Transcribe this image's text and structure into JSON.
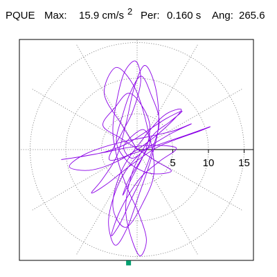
{
  "header": {
    "station": "PQUE",
    "max_label": "Max:",
    "max_value": "15.9 cm/s",
    "max_exponent": "2",
    "per_label": "Per:",
    "per_value": "0.160 s",
    "ang_label": "Ang:",
    "ang_value": "265.6"
  },
  "chart_data": {
    "type": "line",
    "subtype": "polar-particle-motion",
    "title": "",
    "xlabel": "",
    "ylabel": "",
    "rlim": [
      0,
      17
    ],
    "ring_values": [
      5,
      10,
      15
    ],
    "tick_labels": [
      "5",
      "10",
      "15"
    ],
    "radial_spokes_deg": [
      0,
      30,
      60,
      90,
      120,
      150,
      180,
      210,
      240,
      270,
      300,
      330
    ],
    "grid": true,
    "trace_color": "#8a00e6",
    "marker_color": "#00a070",
    "peak": {
      "amplitude": 15.9,
      "period_s": 0.16,
      "angle_deg": 265.6
    },
    "marker_point": {
      "x": -1.2,
      "y": -15.9
    },
    "series": [
      {
        "points": [
          [
            0.0,
            0.0
          ],
          [
            -2.1,
            3.4
          ],
          [
            -4.6,
            7.8
          ],
          [
            -3.0,
            11.5
          ],
          [
            -0.5,
            9.0
          ],
          [
            1.2,
            4.1
          ],
          [
            2.4,
            -2.8
          ],
          [
            0.8,
            -7.5
          ],
          [
            -1.6,
            -10.9
          ],
          [
            -3.4,
            -8.0
          ],
          [
            -2.2,
            -3.0
          ],
          [
            0.9,
            1.6
          ],
          [
            3.8,
            4.8
          ],
          [
            6.2,
            5.6
          ],
          [
            4.1,
            3.2
          ],
          [
            0.6,
            0.4
          ],
          [
            -3.1,
            -1.8
          ],
          [
            -6.7,
            -2.9
          ],
          [
            -9.5,
            -2.4
          ],
          [
            -7.2,
            -0.6
          ],
          [
            -2.8,
            0.9
          ],
          [
            1.5,
            1.8
          ],
          [
            5.0,
            2.6
          ],
          [
            7.6,
            3.6
          ],
          [
            4.3,
            2.0
          ],
          [
            0.2,
            -0.8
          ],
          [
            -2.5,
            -4.6
          ],
          [
            -4.0,
            -9.8
          ],
          [
            -3.1,
            -13.4
          ],
          [
            -1.4,
            -11.0
          ],
          [
            0.3,
            -6.2
          ],
          [
            1.9,
            -1.5
          ],
          [
            3.0,
            3.4
          ],
          [
            2.6,
            8.6
          ],
          [
            1.1,
            11.8
          ],
          [
            -0.4,
            8.7
          ],
          [
            -1.5,
            3.9
          ],
          [
            -2.8,
            -0.8
          ],
          [
            -4.9,
            -4.2
          ],
          [
            -6.4,
            -6.1
          ],
          [
            -4.2,
            -4.8
          ],
          [
            -0.9,
            -2.2
          ],
          [
            2.6,
            0.2
          ],
          [
            5.4,
            1.4
          ],
          [
            8.8,
            2.6
          ],
          [
            10.2,
            3.2
          ],
          [
            7.1,
            2.1
          ],
          [
            3.3,
            0.8
          ],
          [
            -0.4,
            -0.5
          ],
          [
            -3.9,
            -1.4
          ],
          [
            -2.2,
            2.2
          ],
          [
            -0.6,
            5.4
          ],
          [
            0.5,
            9.6
          ],
          [
            -0.2,
            12.4
          ],
          [
            -1.8,
            10.8
          ],
          [
            -2.9,
            6.6
          ],
          [
            -3.4,
            2.4
          ],
          [
            -2.6,
            -1.9
          ],
          [
            -1.3,
            -5.6
          ],
          [
            0.2,
            -8.9
          ],
          [
            1.3,
            -12.6
          ],
          [
            0.4,
            -14.9
          ],
          [
            -0.9,
            -12.1
          ],
          [
            -1.6,
            -8.4
          ],
          [
            -1.0,
            -4.3
          ],
          [
            0.4,
            -0.7
          ],
          [
            2.4,
            2.2
          ],
          [
            4.6,
            3.9
          ],
          [
            6.3,
            5.4
          ],
          [
            4.0,
            4.3
          ],
          [
            1.4,
            2.6
          ],
          [
            -1.5,
            0.8
          ],
          [
            -4.4,
            -0.3
          ],
          [
            -7.3,
            -0.9
          ],
          [
            -10.6,
            -1.4
          ],
          [
            -8.0,
            -1.0
          ],
          [
            -4.6,
            -0.4
          ],
          [
            -1.2,
            0.3
          ],
          [
            2.1,
            0.6
          ],
          [
            5.5,
            0.2
          ],
          [
            3.2,
            -1.6
          ],
          [
            0.6,
            -3.8
          ],
          [
            -1.4,
            -6.7
          ],
          [
            -2.8,
            -9.5
          ],
          [
            -3.6,
            -12.1
          ],
          [
            -2.3,
            -10.2
          ],
          [
            -0.8,
            -6.9
          ],
          [
            0.9,
            -3.4
          ],
          [
            2.2,
            0.2
          ],
          [
            3.1,
            4.0
          ],
          [
            2.0,
            7.6
          ],
          [
            0.6,
            10.3
          ],
          [
            -0.9,
            8.1
          ],
          [
            -2.1,
            4.6
          ],
          [
            -2.9,
            1.1
          ],
          [
            -1.6,
            -1.4
          ],
          [
            0.3,
            -2.8
          ],
          [
            2.4,
            -3.4
          ],
          [
            4.8,
            -3.0
          ],
          [
            2.6,
            -1.6
          ],
          [
            0.2,
            0.0
          ],
          [
            -2.3,
            1.6
          ],
          [
            -4.8,
            3.4
          ],
          [
            -3.1,
            5.9
          ],
          [
            -1.2,
            7.9
          ],
          [
            0.7,
            6.1
          ],
          [
            1.8,
            3.2
          ],
          [
            1.1,
            -0.3
          ],
          [
            -0.6,
            -3.7
          ],
          [
            -2.0,
            -6.4
          ],
          [
            -1.1,
            -4.1
          ],
          [
            0.5,
            -1.5
          ],
          [
            1.8,
            1.1
          ],
          [
            0.9,
            2.8
          ],
          [
            -0.7,
            1.9
          ],
          [
            -1.9,
            0.3
          ],
          [
            -0.8,
            -1.2
          ],
          [
            0.6,
            -0.4
          ],
          [
            0.0,
            0.0
          ]
        ]
      }
    ]
  }
}
